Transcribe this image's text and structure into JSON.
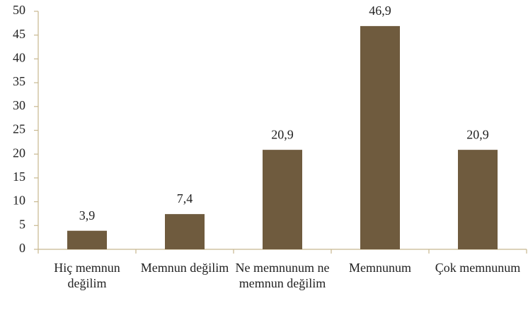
{
  "chart_data": {
    "type": "bar",
    "categories": [
      "Hiç memnun değilim",
      "Memnun değilim",
      "Ne memnunum ne memnun değilim",
      "Memnunum",
      "Çok memnunum"
    ],
    "values": [
      3.9,
      7.4,
      20.9,
      46.9,
      20.9
    ],
    "value_labels": [
      "3,9",
      "7,4",
      "20,9",
      "46,9",
      "20,9"
    ],
    "color": "#6f5b3e",
    "ylim": [
      0,
      50
    ],
    "yticks": [
      0,
      5,
      10,
      15,
      20,
      25,
      30,
      35,
      40,
      45,
      50
    ],
    "grid": false
  }
}
